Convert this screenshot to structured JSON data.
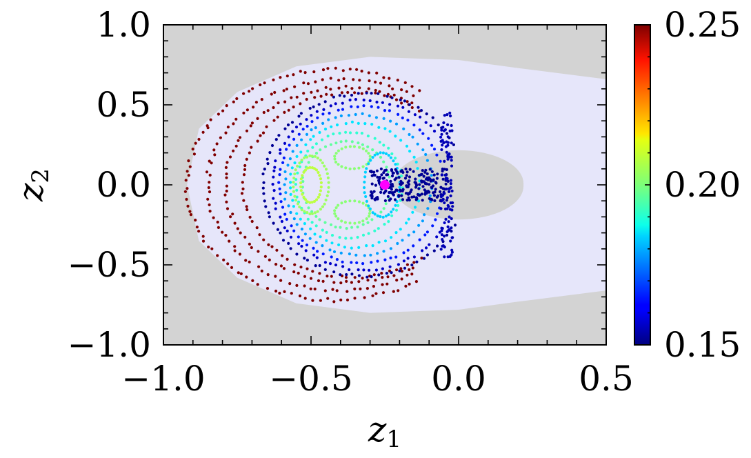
{
  "chart_data": {
    "type": "scatter",
    "title": "",
    "xlabel": "z",
    "xlabel_sub": "1",
    "ylabel": "z",
    "ylabel_sub": "2",
    "xlim": [
      -1.0,
      0.5
    ],
    "ylim": [
      -1.0,
      1.0
    ],
    "xticks": [
      -1.0,
      -0.5,
      0.0,
      0.5
    ],
    "xtick_labels": [
      "−1.0",
      "−0.5",
      "0.0",
      "0.5"
    ],
    "yticks": [
      -1.0,
      -0.5,
      0.0,
      0.5,
      1.0
    ],
    "ytick_labels": [
      "−1.0",
      "−0.5",
      "0.0",
      "0.5",
      "1.0"
    ],
    "grid": false,
    "background_color": "#d3d3d3",
    "region_color": "#e6e6fa",
    "region_outer_boundary": [
      [
        0.5,
        0.66
      ],
      [
        0.2,
        0.73
      ],
      [
        0.0,
        0.78
      ],
      [
        -0.3,
        0.8
      ],
      [
        -0.55,
        0.74
      ],
      [
        -0.75,
        0.58
      ],
      [
        -0.88,
        0.35
      ],
      [
        -0.92,
        0.0
      ],
      [
        -0.88,
        -0.35
      ],
      [
        -0.75,
        -0.58
      ],
      [
        -0.55,
        -0.74
      ],
      [
        -0.3,
        -0.8
      ],
      [
        0.0,
        -0.78
      ],
      [
        0.2,
        -0.73
      ],
      [
        0.5,
        -0.66
      ]
    ],
    "region_hole": {
      "center": [
        0.0,
        0.0
      ],
      "rx": 0.22,
      "ry": 0.21
    },
    "marked_point": {
      "x": -0.25,
      "y": 0.0,
      "color": "#ff00ff"
    },
    "colorbar": {
      "min": 0.15,
      "max": 0.25,
      "ticks": [
        0.15,
        0.2,
        0.25
      ],
      "tick_labels": [
        "0.15",
        "0.20",
        "0.25"
      ],
      "colormap": "jet"
    },
    "orbits": [
      {
        "shape": "ring",
        "cx": -0.42,
        "cy": 0.0,
        "rx": 0.5,
        "ry": 0.72,
        "theta_range": [
          55,
          305
        ],
        "n": 90,
        "value": 0.25
      },
      {
        "shape": "ring",
        "cx": -0.4,
        "cy": 0.0,
        "rx": 0.45,
        "ry": 0.66,
        "theta_range": [
          55,
          305
        ],
        "n": 80,
        "value": 0.25
      },
      {
        "shape": "ring",
        "cx": -0.38,
        "cy": 0.0,
        "rx": 0.41,
        "ry": 0.61,
        "theta_range": [
          55,
          305
        ],
        "n": 75,
        "value": 0.25
      },
      {
        "shape": "ring",
        "cx": -0.36,
        "cy": 0.0,
        "rx": 0.37,
        "ry": 0.58,
        "theta_range": [
          50,
          310
        ],
        "n": 70,
        "value": 0.25
      },
      {
        "shape": "ring",
        "cx": -0.32,
        "cy": 0.0,
        "rx": 0.34,
        "ry": 0.57,
        "theta_range": [
          25,
          335
        ],
        "n": 80,
        "value": 0.152
      },
      {
        "shape": "ring",
        "cx": -0.32,
        "cy": 0.0,
        "rx": 0.31,
        "ry": 0.53,
        "theta_range": [
          20,
          340
        ],
        "n": 75,
        "value": 0.157
      },
      {
        "shape": "ring",
        "cx": -0.33,
        "cy": 0.0,
        "rx": 0.28,
        "ry": 0.49,
        "theta_range": [
          15,
          345
        ],
        "n": 70,
        "value": 0.165
      },
      {
        "shape": "ring",
        "cx": -0.34,
        "cy": 0.0,
        "rx": 0.25,
        "ry": 0.44,
        "theta_range": [
          0,
          360
        ],
        "n": 65,
        "value": 0.178
      },
      {
        "shape": "ring",
        "cx": -0.35,
        "cy": 0.0,
        "rx": 0.22,
        "ry": 0.39,
        "theta_range": [
          0,
          360
        ],
        "n": 60,
        "value": 0.185
      },
      {
        "shape": "ring",
        "cx": -0.37,
        "cy": 0.0,
        "rx": 0.18,
        "ry": 0.33,
        "theta_range": [
          0,
          360
        ],
        "n": 55,
        "value": 0.192
      },
      {
        "shape": "ring",
        "cx": -0.38,
        "cy": 0.0,
        "rx": 0.15,
        "ry": 0.27,
        "theta_range": [
          0,
          360
        ],
        "n": 50,
        "value": 0.197
      },
      {
        "shape": "ring",
        "cx": -0.5,
        "cy": 0.0,
        "rx": 0.06,
        "ry": 0.18,
        "theta_range": [
          0,
          360
        ],
        "n": 40,
        "value": 0.203
      },
      {
        "shape": "ring",
        "cx": -0.5,
        "cy": 0.0,
        "rx": 0.035,
        "ry": 0.11,
        "theta_range": [
          0,
          360
        ],
        "n": 28,
        "value": 0.206
      },
      {
        "shape": "ring",
        "cx": -0.36,
        "cy": 0.17,
        "rx": 0.06,
        "ry": 0.07,
        "theta_range": [
          0,
          360
        ],
        "n": 24,
        "value": 0.201
      },
      {
        "shape": "ring",
        "cx": -0.36,
        "cy": -0.17,
        "rx": 0.06,
        "ry": 0.07,
        "theta_range": [
          0,
          360
        ],
        "n": 24,
        "value": 0.201
      },
      {
        "shape": "ring",
        "cx": -0.26,
        "cy": 0.0,
        "rx": 0.06,
        "ry": 0.2,
        "theta_range": [
          0,
          360
        ],
        "n": 40,
        "value": 0.183
      },
      {
        "shape": "band",
        "x_range": [
          -0.3,
          -0.03
        ],
        "y_center": 0.05,
        "y_spread": 0.05,
        "n": 110,
        "value": 0.152
      },
      {
        "shape": "band",
        "x_range": [
          -0.3,
          -0.03
        ],
        "y_center": -0.05,
        "y_spread": 0.05,
        "n": 110,
        "value": 0.152
      },
      {
        "shape": "band",
        "x_range": [
          -0.06,
          -0.02
        ],
        "y_center": 0.0,
        "y_spread": 0.45,
        "n": 90,
        "value": 0.155
      }
    ]
  }
}
